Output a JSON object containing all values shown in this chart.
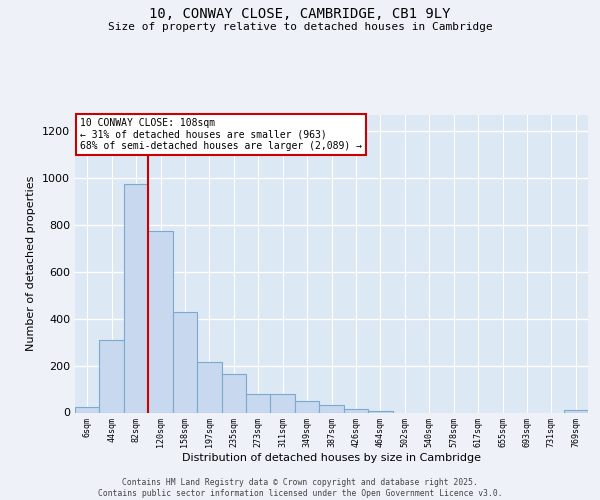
{
  "title_line1": "10, CONWAY CLOSE, CAMBRIDGE, CB1 9LY",
  "title_line2": "Size of property relative to detached houses in Cambridge",
  "xlabel": "Distribution of detached houses by size in Cambridge",
  "ylabel": "Number of detached properties",
  "categories": [
    "6sqm",
    "44sqm",
    "82sqm",
    "120sqm",
    "158sqm",
    "197sqm",
    "235sqm",
    "273sqm",
    "311sqm",
    "349sqm",
    "387sqm",
    "426sqm",
    "464sqm",
    "502sqm",
    "540sqm",
    "578sqm",
    "617sqm",
    "655sqm",
    "693sqm",
    "731sqm",
    "769sqm"
  ],
  "values": [
    22,
    308,
    975,
    775,
    430,
    215,
    165,
    80,
    80,
    48,
    30,
    15,
    5,
    0,
    0,
    0,
    0,
    0,
    0,
    0,
    12
  ],
  "bar_color": "#c8d8ee",
  "bar_edge_color": "#7aaace",
  "red_line_color": "#cc0000",
  "red_line_x": 2.5,
  "annotation_text": "10 CONWAY CLOSE: 108sqm\n← 31% of detached houses are smaller (963)\n68% of semi-detached houses are larger (2,089) →",
  "annotation_box_color": "#ffffff",
  "annotation_box_edge": "#cc0000",
  "ylim": [
    0,
    1270
  ],
  "yticks": [
    0,
    200,
    400,
    600,
    800,
    1000,
    1200
  ],
  "plot_bg_color": "#dde8f5",
  "fig_bg_color": "#eef2f8",
  "grid_color": "#ffffff",
  "footer": "Contains HM Land Registry data © Crown copyright and database right 2025.\nContains public sector information licensed under the Open Government Licence v3.0."
}
